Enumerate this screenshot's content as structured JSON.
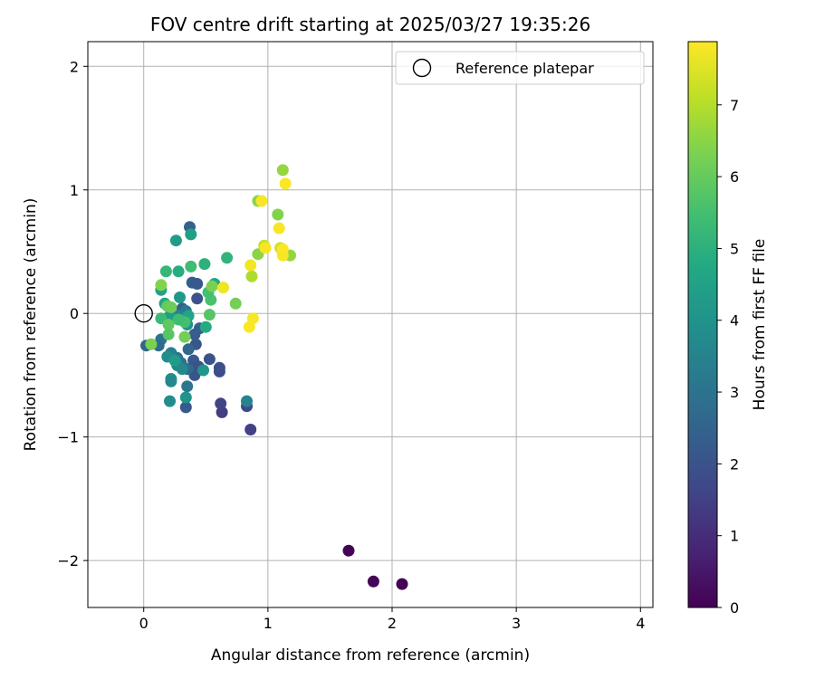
{
  "chart_data": {
    "type": "scatter",
    "title": "FOV centre drift starting at 2025/03/27 19:35:26",
    "xlabel": "Angular distance from reference (arcmin)",
    "ylabel": "Rotation from reference (arcmin)",
    "xlim": [
      -0.45,
      4.1
    ],
    "ylim": [
      -2.38,
      2.2
    ],
    "xticks": [
      0,
      1,
      2,
      3,
      4
    ],
    "yticks": [
      -2,
      -1,
      0,
      1,
      2
    ],
    "xtick_labels": [
      "0",
      "1",
      "2",
      "3",
      "4"
    ],
    "ytick_labels": [
      "−2",
      "−1",
      "0",
      "1",
      "2"
    ],
    "grid": true,
    "legend": {
      "placement": "top-right",
      "label": "Reference platepar"
    },
    "reference_point": {
      "x": 0,
      "y": 0
    },
    "colorbar": {
      "label": "Hours from first FF file",
      "colormap": "viridis",
      "min": 0,
      "max": 7.88,
      "ticks": [
        0,
        1,
        2,
        3,
        4,
        5,
        6,
        7
      ],
      "tick_labels": [
        "0",
        "1",
        "2",
        "3",
        "4",
        "5",
        "6",
        "7"
      ]
    },
    "points": [
      {
        "x": 1.65,
        "y": -1.92,
        "c": 0.05
      },
      {
        "x": 1.85,
        "y": -2.17,
        "c": 0.1
      },
      {
        "x": 2.08,
        "y": -2.19,
        "c": 0.02
      },
      {
        "x": 0.86,
        "y": -0.94,
        "c": 1.5
      },
      {
        "x": 0.63,
        "y": -0.8,
        "c": 1.4
      },
      {
        "x": 0.83,
        "y": -0.75,
        "c": 1.7
      },
      {
        "x": 0.62,
        "y": -0.73,
        "c": 1.6
      },
      {
        "x": 0.61,
        "y": -0.47,
        "c": 1.8
      },
      {
        "x": 0.61,
        "y": -0.44,
        "c": 1.9
      },
      {
        "x": 0.53,
        "y": -0.37,
        "c": 2.0
      },
      {
        "x": 0.41,
        "y": -0.5,
        "c": 2.1
      },
      {
        "x": 0.34,
        "y": -0.76,
        "c": 2.2
      },
      {
        "x": 0.43,
        "y": 0.12,
        "c": 2.0
      },
      {
        "x": 0.37,
        "y": 0.7,
        "c": 2.5
      },
      {
        "x": 0.39,
        "y": 0.25,
        "c": 2.3
      },
      {
        "x": 0.43,
        "y": 0.24,
        "c": 2.2
      },
      {
        "x": 0.02,
        "y": -0.26,
        "c": 2.6
      },
      {
        "x": 0.45,
        "y": -0.12,
        "c": 2.4
      },
      {
        "x": 0.42,
        "y": -0.25,
        "c": 2.1
      },
      {
        "x": 0.41,
        "y": -0.17,
        "c": 2.3
      },
      {
        "x": 0.36,
        "y": -0.29,
        "c": 2.6
      },
      {
        "x": 0.4,
        "y": -0.38,
        "c": 2.2
      },
      {
        "x": 0.44,
        "y": -0.43,
        "c": 2.0
      },
      {
        "x": 0.35,
        "y": -0.45,
        "c": 2.7
      },
      {
        "x": 0.31,
        "y": 0.04,
        "c": 2.5
      },
      {
        "x": 0.3,
        "y": -0.4,
        "c": 2.9
      },
      {
        "x": 0.27,
        "y": -0.36,
        "c": 3.0
      },
      {
        "x": 0.14,
        "y": -0.21,
        "c": 3.0
      },
      {
        "x": 0.12,
        "y": -0.26,
        "c": 2.8
      },
      {
        "x": 0.35,
        "y": -0.59,
        "c": 3.1
      },
      {
        "x": 0.34,
        "y": 0.02,
        "c": 3.2
      },
      {
        "x": 0.83,
        "y": -0.71,
        "c": 3.5
      },
      {
        "x": 0.22,
        "y": -0.32,
        "c": 3.4
      },
      {
        "x": 0.28,
        "y": -0.02,
        "c": 3.5
      },
      {
        "x": 0.27,
        "y": -0.42,
        "c": 3.6
      },
      {
        "x": 0.31,
        "y": -0.45,
        "c": 3.7
      },
      {
        "x": 0.19,
        "y": -0.35,
        "c": 3.8
      },
      {
        "x": 0.22,
        "y": -0.53,
        "c": 3.9
      },
      {
        "x": 0.22,
        "y": -0.55,
        "c": 3.7
      },
      {
        "x": 0.21,
        "y": -0.71,
        "c": 3.8
      },
      {
        "x": 0.34,
        "y": -0.68,
        "c": 4.0
      },
      {
        "x": 0.48,
        "y": -0.46,
        "c": 4.1
      },
      {
        "x": 0.35,
        "y": -0.09,
        "c": 4.0
      },
      {
        "x": 0.29,
        "y": 0.13,
        "c": 4.2
      },
      {
        "x": 0.25,
        "y": -0.38,
        "c": 4.3
      },
      {
        "x": 0.38,
        "y": 0.64,
        "c": 4.4
      },
      {
        "x": 0.26,
        "y": 0.59,
        "c": 4.3
      },
      {
        "x": 0.21,
        "y": -0.02,
        "c": 4.3
      },
      {
        "x": 0.14,
        "y": 0.19,
        "c": 4.5
      },
      {
        "x": 0.17,
        "y": 0.08,
        "c": 4.6
      },
      {
        "x": 0.36,
        "y": -0.02,
        "c": 4.6
      },
      {
        "x": 0.5,
        "y": -0.11,
        "c": 4.8
      },
      {
        "x": 0.57,
        "y": 0.24,
        "c": 4.7
      },
      {
        "x": 0.28,
        "y": 0.34,
        "c": 4.9
      },
      {
        "x": 0.49,
        "y": 0.4,
        "c": 5.0
      },
      {
        "x": 0.67,
        "y": 0.45,
        "c": 5.1
      },
      {
        "x": 0.18,
        "y": 0.34,
        "c": 5.2
      },
      {
        "x": 0.14,
        "y": -0.04,
        "c": 5.3
      },
      {
        "x": 0.38,
        "y": 0.38,
        "c": 5.4
      },
      {
        "x": 0.33,
        "y": -0.07,
        "c": 5.5
      },
      {
        "x": 0.54,
        "y": 0.11,
        "c": 5.6
      },
      {
        "x": 0.52,
        "y": 0.17,
        "c": 5.5
      },
      {
        "x": 0.28,
        "y": -0.05,
        "c": 5.4
      },
      {
        "x": 0.53,
        "y": -0.01,
        "c": 5.8
      },
      {
        "x": 0.2,
        "y": -0.09,
        "c": 5.9
      },
      {
        "x": 0.2,
        "y": -0.17,
        "c": 5.8
      },
      {
        "x": 0.19,
        "y": 0.06,
        "c": 6.0
      },
      {
        "x": 0.22,
        "y": 0.05,
        "c": 6.1
      },
      {
        "x": 0.74,
        "y": 0.08,
        "c": 6.2
      },
      {
        "x": 0.55,
        "y": 0.22,
        "c": 6.3
      },
      {
        "x": 0.14,
        "y": 0.23,
        "c": 6.4
      },
      {
        "x": 0.06,
        "y": -0.25,
        "c": 6.3
      },
      {
        "x": 0.33,
        "y": -0.19,
        "c": 6.2
      },
      {
        "x": 0.92,
        "y": 0.91,
        "c": 6.5
      },
      {
        "x": 1.12,
        "y": 1.16,
        "c": 6.6
      },
      {
        "x": 1.08,
        "y": 0.8,
        "c": 6.4
      },
      {
        "x": 0.92,
        "y": 0.48,
        "c": 6.5
      },
      {
        "x": 1.18,
        "y": 0.47,
        "c": 6.6
      },
      {
        "x": 0.87,
        "y": 0.3,
        "c": 6.9
      },
      {
        "x": 0.97,
        "y": 0.55,
        "c": 7.2
      },
      {
        "x": 1.1,
        "y": 0.53,
        "c": 7.3
      },
      {
        "x": 1.14,
        "y": 1.05,
        "c": 7.85
      },
      {
        "x": 0.95,
        "y": 0.91,
        "c": 7.8
      },
      {
        "x": 1.09,
        "y": 0.69,
        "c": 7.8
      },
      {
        "x": 0.98,
        "y": 0.53,
        "c": 7.8
      },
      {
        "x": 1.12,
        "y": 0.52,
        "c": 7.85
      },
      {
        "x": 1.12,
        "y": 0.47,
        "c": 7.8
      },
      {
        "x": 0.86,
        "y": 0.39,
        "c": 7.75
      },
      {
        "x": 0.64,
        "y": 0.21,
        "c": 7.7
      },
      {
        "x": 0.88,
        "y": -0.04,
        "c": 7.8
      },
      {
        "x": 0.85,
        "y": -0.11,
        "c": 7.85
      }
    ]
  }
}
